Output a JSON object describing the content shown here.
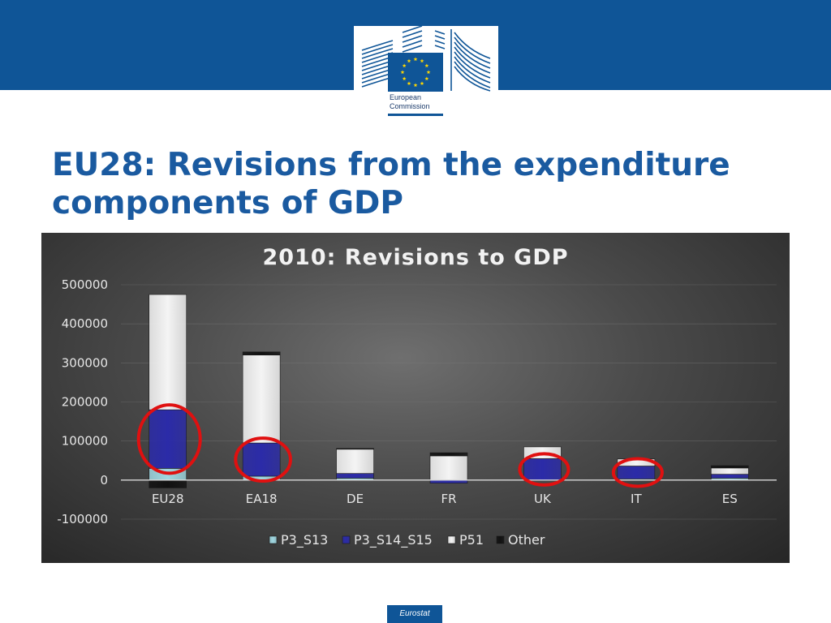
{
  "header": {
    "logo_lines": [
      "European",
      "Commission"
    ],
    "brand_color": "#0f5597"
  },
  "slide": {
    "title": "EU28: Revisions from the expenditure components of GDP"
  },
  "footer": {
    "badge": "Eurostat"
  },
  "chart_data": {
    "type": "bar",
    "stacked": true,
    "title": "2010: Revisions to GDP",
    "xlabel": "",
    "ylabel": "",
    "ylim": [
      -100000,
      500000
    ],
    "yticks": [
      500000,
      400000,
      300000,
      200000,
      100000,
      0,
      -100000
    ],
    "grid": true,
    "legend_position": "bottom",
    "categories": [
      "EU28",
      "EA18",
      "DE",
      "FR",
      "UK",
      "IT",
      "ES"
    ],
    "series": [
      {
        "name": "P3_S13",
        "color": "#9fd6e0",
        "values": [
          30000,
          10000,
          5000,
          0,
          0,
          3000,
          5000
        ]
      },
      {
        "name": "P3_S14_S15",
        "color": "#2b2ba8",
        "values": [
          150000,
          85000,
          12000,
          -8000,
          55000,
          33000,
          10000
        ]
      },
      {
        "name": "P51",
        "color": "#f4f4f4",
        "values": [
          295000,
          225000,
          62000,
          62000,
          30000,
          18000,
          16000
        ]
      },
      {
        "name": "Other",
        "color": "#111111",
        "values": [
          -20000,
          8000,
          2000,
          8000,
          0,
          0,
          6000
        ]
      }
    ],
    "highlighted_categories": [
      "EU28",
      "EA18",
      "UK",
      "IT"
    ]
  }
}
